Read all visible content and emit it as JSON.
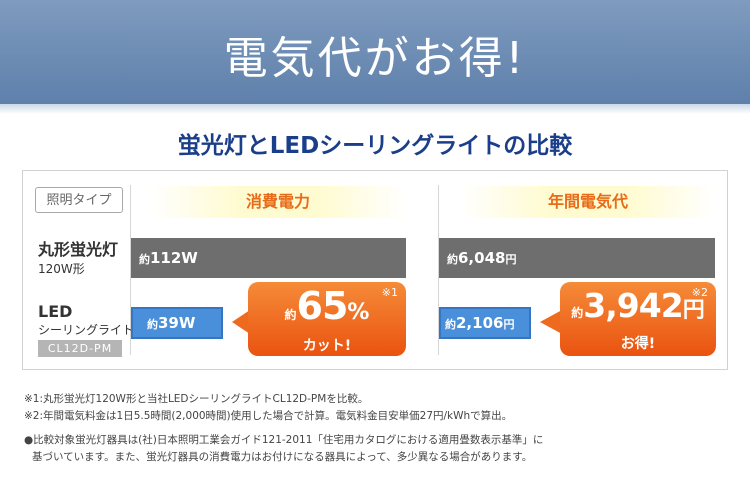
{
  "banner": {
    "title": "電気代がお得!"
  },
  "subtitle": "蛍光灯とLEDシーリングライトの比較",
  "table": {
    "type_label": "照明タイプ",
    "col1_header": "消費電力",
    "col2_header": "年間電気代",
    "row1": {
      "name": "丸形蛍光灯",
      "sub": "120W形",
      "power_prefix": "約",
      "power_value": "112W",
      "cost_prefix": "約",
      "cost_value": "6,048",
      "cost_unit": "円"
    },
    "row2": {
      "name": "LED",
      "sub": "シーリングライト",
      "code": "CL12D-PM",
      "power_prefix": "約",
      "power_value": "39W",
      "cost_prefix": "約",
      "cost_value": "2,106",
      "cost_unit": "円"
    },
    "callout1": {
      "prefix": "約",
      "value": "65",
      "unit": "%",
      "sub": "カット!",
      "mark": "※1"
    },
    "callout2": {
      "prefix": "約",
      "value": "3,942",
      "unit": "円",
      "sub": "お得!",
      "mark": "※2"
    }
  },
  "notes": [
    "※1:丸形蛍光灯120W形と当社LEDシーリングライトCL12D-PMを比較。",
    "※2:年間電気料金は1日5.5時間(2,000時間)使用した場合で計算。電気料金目安単価27円/kWhで算出。",
    "●比較対象蛍光灯器具は(社)日本照明工業会ガイド121-2011「住宅用カタログにおける適用畳数表示基準」に",
    "基づいています。また、蛍光灯器具の消費電力はお付けになる器具によって、多少異なる場合があります。"
  ],
  "colors": {
    "banner": "#6f8db5",
    "subtitle": "#1b3e8a",
    "header_text": "#e86b19",
    "bar_gray": "#6e6e6e",
    "bar_blue": "#4a8fda",
    "callout": "#ee6a1e"
  }
}
